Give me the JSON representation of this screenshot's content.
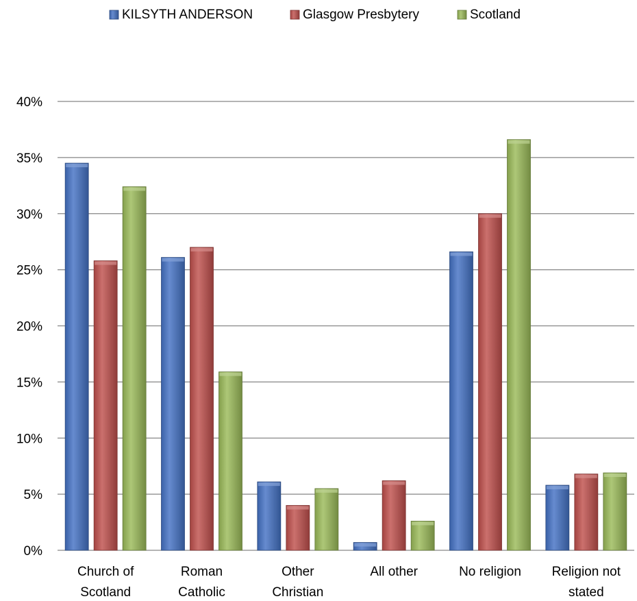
{
  "chart_data": {
    "type": "bar",
    "categories": [
      [
        "Church of",
        "Scotland"
      ],
      [
        "Roman",
        "Catholic"
      ],
      [
        "Other",
        "Christian"
      ],
      [
        "All other"
      ],
      [
        "No religion"
      ],
      [
        "Religion not",
        "stated"
      ]
    ],
    "series": [
      {
        "name": "KILSYTH ANDERSON",
        "color": "#4472c4",
        "values": [
          34.5,
          26.1,
          6.1,
          0.7,
          26.6,
          5.8
        ]
      },
      {
        "name": "Glasgow Presbytery",
        "color": "#c0504d",
        "values": [
          25.8,
          27.0,
          4.0,
          6.2,
          30.0,
          6.8
        ]
      },
      {
        "name": "Scotland",
        "color": "#9bbb59",
        "values": [
          32.4,
          15.9,
          5.5,
          2.6,
          36.6,
          6.9
        ]
      }
    ],
    "ylim": [
      0,
      40
    ],
    "yticks": [
      0,
      5,
      10,
      15,
      20,
      25,
      30,
      35,
      40
    ],
    "ytick_labels": [
      "0%",
      "5%",
      "10%",
      "15%",
      "20%",
      "25%",
      "30%",
      "35%",
      "40%"
    ],
    "grid": true,
    "legend_position": "top"
  }
}
